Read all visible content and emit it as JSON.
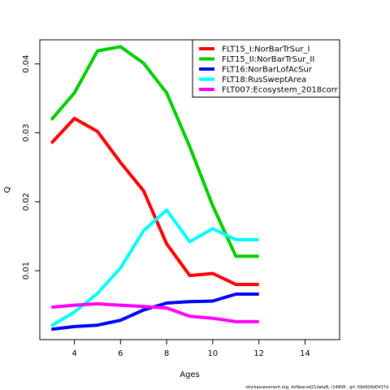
{
  "chart_data": {
    "type": "line",
    "xlabel": "Ages",
    "ylabel": "Q",
    "xlim": [
      2.5,
      15.5
    ],
    "ylim": [
      0.0,
      0.0435
    ],
    "xticks": [
      4,
      6,
      8,
      10,
      12,
      14
    ],
    "yticks": [
      0.01,
      0.02,
      0.03,
      0.04
    ],
    "grid": false,
    "legend_position": "top-right",
    "series": [
      {
        "name": "FLT15_I:NorBarTrSur_I",
        "color": "#ff0000",
        "x": [
          3,
          4,
          5,
          6,
          7,
          8,
          9,
          10,
          11,
          12
        ],
        "y": [
          0.0285,
          0.0321,
          0.0302,
          0.0257,
          0.0216,
          0.0139,
          0.0093,
          0.0096,
          0.008,
          0.008
        ]
      },
      {
        "name": "FLT15_II:NorBarTrSur_II",
        "color": "#00cd00",
        "x": [
          3,
          4,
          5,
          6,
          7,
          8,
          9,
          10,
          11,
          12
        ],
        "y": [
          0.0319,
          0.0358,
          0.0419,
          0.0425,
          0.0401,
          0.0358,
          0.028,
          0.0194,
          0.0121,
          0.0121
        ]
      },
      {
        "name": "FLT16:NorBarLofAcSur",
        "color": "#0000ff",
        "x": [
          3,
          4,
          5,
          6,
          7,
          8,
          9,
          10,
          11,
          12
        ],
        "y": [
          0.0015,
          0.0019,
          0.0021,
          0.0028,
          0.0043,
          0.0053,
          0.0055,
          0.0056,
          0.0066,
          0.0066
        ]
      },
      {
        "name": "FLT18:RusSweptArea",
        "color": "#00ffff",
        "x": [
          3,
          4,
          5,
          6,
          7,
          8,
          9,
          10,
          11,
          12
        ],
        "y": [
          0.002,
          0.004,
          0.0067,
          0.0104,
          0.0158,
          0.0188,
          0.0142,
          0.0161,
          0.0145,
          0.0145
        ]
      },
      {
        "name": "FLT007:Ecosystem_2018corr",
        "color": "#ff00ff",
        "x": [
          3,
          4,
          5,
          6,
          7,
          8,
          9,
          10,
          11,
          12
        ],
        "y": [
          0.0047,
          0.005,
          0.0052,
          0.005,
          0.0048,
          0.0046,
          0.0034,
          0.0031,
          0.0026,
          0.0026
        ]
      }
    ]
  },
  "footer": "stockassessment.org, dvNeacod21dataB, r14808 , git: 69d926d0437d"
}
